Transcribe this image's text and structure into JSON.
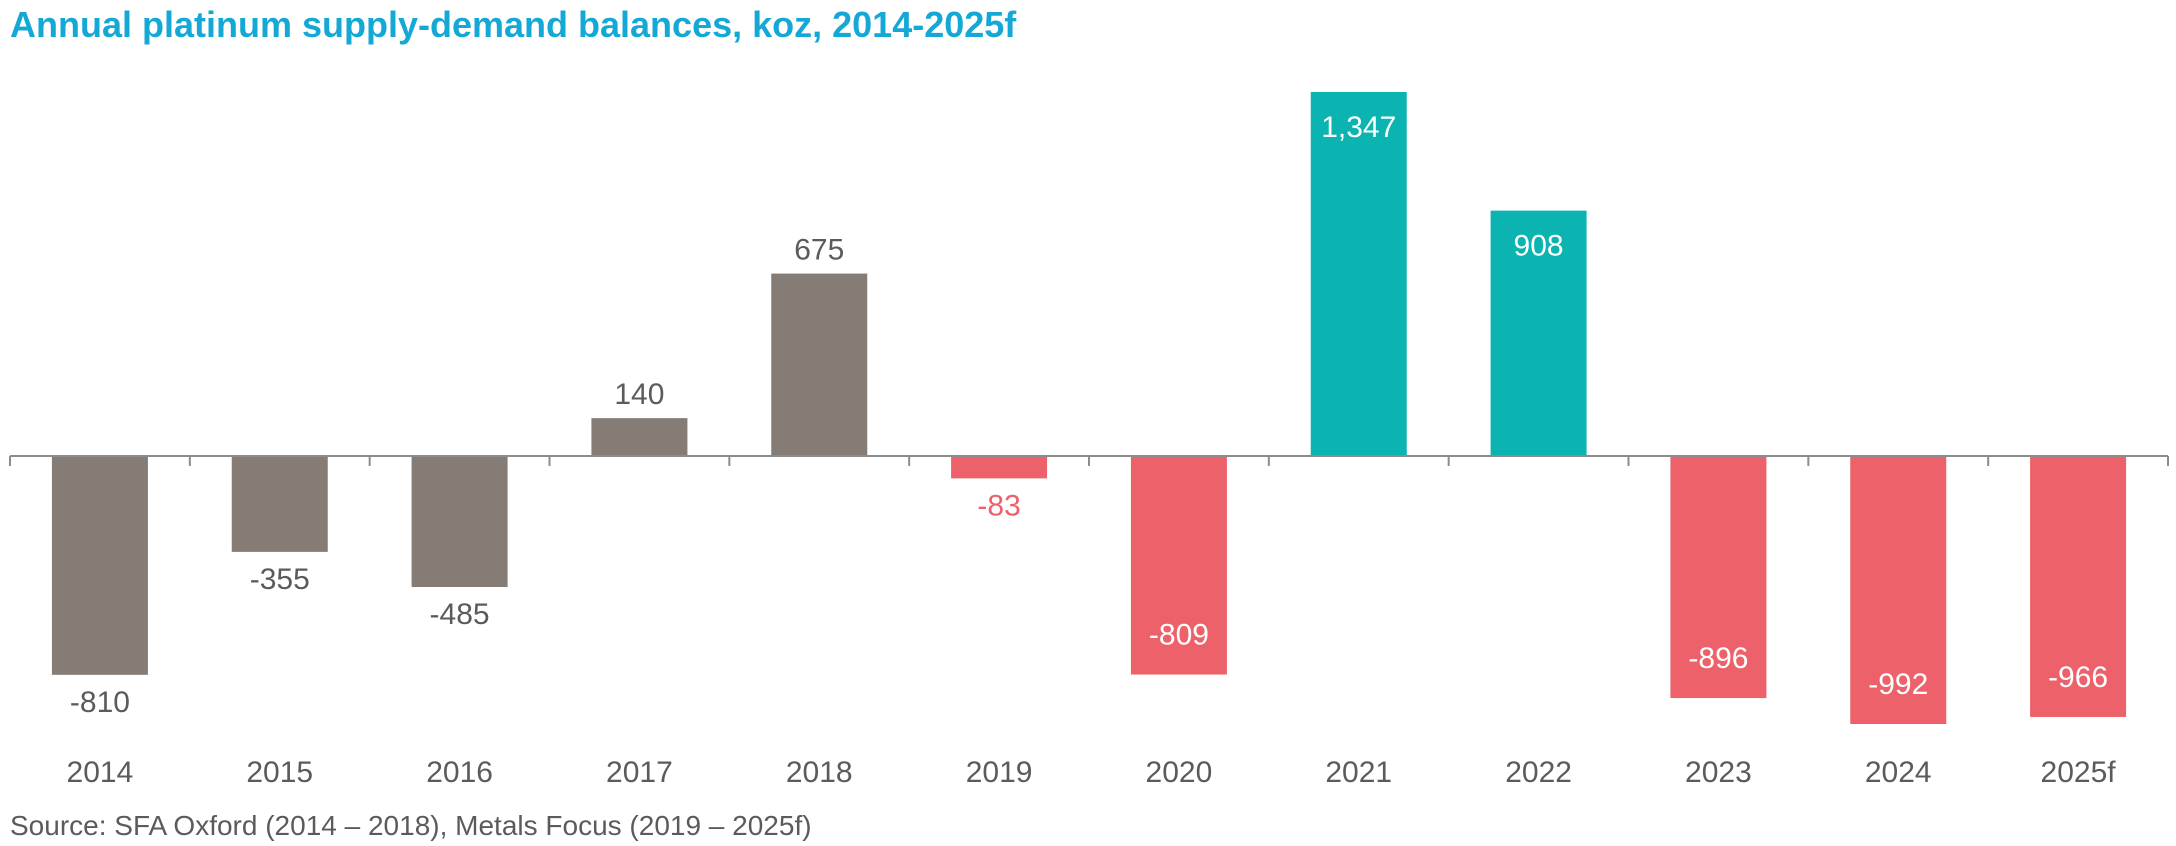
{
  "title": "Annual platinum supply-demand balances, koz, 2014-2025f",
  "source": "Source: SFA Oxford (2014 – 2018), Metals Focus (2019 – 2025f)",
  "colors": {
    "title": "#14a8d6",
    "sfa": "#857c75",
    "surplus": "#0bb4b0",
    "deficit": "#ed626a",
    "text": "#5b5b5b",
    "axis": "#8c8c8c"
  },
  "chart_data": {
    "type": "bar",
    "title": "Annual platinum supply-demand balances, koz, 2014-2025f",
    "xlabel": "",
    "ylabel": "",
    "categories": [
      "2014",
      "2015",
      "2016",
      "2017",
      "2018",
      "2019",
      "2020",
      "2021",
      "2022",
      "2023",
      "2024",
      "2025f"
    ],
    "values": [
      -810,
      -355,
      -485,
      140,
      675,
      -83,
      -809,
      1347,
      908,
      -896,
      -992,
      -966
    ],
    "value_labels": [
      "-810",
      "-355",
      "-485",
      "140",
      "675",
      "-83",
      "-809",
      "1,347",
      "908",
      "-896",
      "-992",
      "-966"
    ],
    "bar_colors": [
      "#857c75",
      "#857c75",
      "#857c75",
      "#857c75",
      "#857c75",
      "#ed626a",
      "#ed626a",
      "#0bb4b0",
      "#0bb4b0",
      "#ed626a",
      "#ed626a",
      "#ed626a"
    ],
    "label_inside": [
      false,
      false,
      false,
      false,
      false,
      false,
      true,
      true,
      true,
      true,
      true,
      true
    ],
    "ylim": [
      -992,
      1347
    ],
    "grid": false,
    "legend": "none"
  }
}
